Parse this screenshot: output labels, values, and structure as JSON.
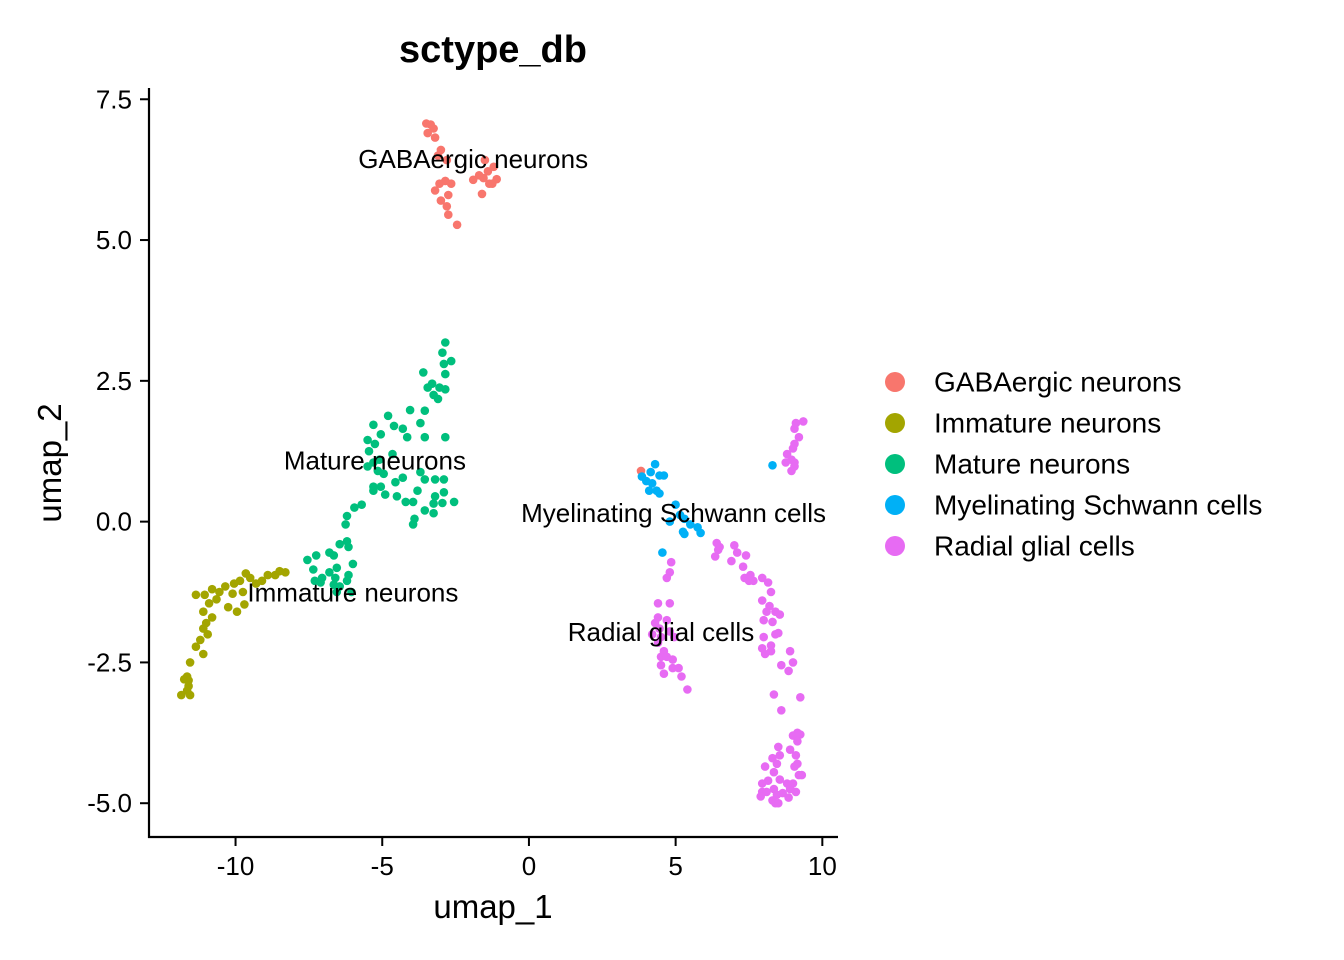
{
  "chart_data": {
    "type": "scatter",
    "title": "sctype_db",
    "xlabel": "umap_1",
    "ylabel": "umap_2",
    "xlim": [
      -12.95,
      10.5
    ],
    "ylim": [
      -5.6,
      7.7
    ],
    "xticks": [
      -10,
      -5,
      0,
      5,
      10
    ],
    "xtick_labels": [
      "-10",
      "-5",
      "0",
      "5",
      "10"
    ],
    "yticks": [
      -5.0,
      -2.5,
      0.0,
      2.5,
      5.0,
      7.5
    ],
    "ytick_labels": [
      "-5.0",
      "-2.5",
      "0.0",
      "2.5",
      "5.0",
      "7.5"
    ],
    "grid": false,
    "legend_position": "right",
    "series": [
      {
        "name": "GABAergic neurons",
        "color": "#F8766D",
        "points": [
          [
            -3.5,
            7.07
          ],
          [
            -3.35,
            7.05
          ],
          [
            -3.25,
            6.98
          ],
          [
            -3.45,
            6.9
          ],
          [
            -3.2,
            6.82
          ],
          [
            -3.0,
            6.6
          ],
          [
            -3.1,
            6.5
          ],
          [
            -2.8,
            6.42
          ],
          [
            -1.5,
            6.42
          ],
          [
            -1.2,
            6.3
          ],
          [
            -1.4,
            6.22
          ],
          [
            -1.7,
            6.15
          ],
          [
            -1.55,
            6.1
          ],
          [
            -1.1,
            6.08
          ],
          [
            -1.25,
            6.0
          ],
          [
            -1.35,
            6.0
          ],
          [
            -1.9,
            6.07
          ],
          [
            -2.85,
            6.05
          ],
          [
            -3.05,
            6.0
          ],
          [
            -2.65,
            6.0
          ],
          [
            -3.2,
            5.88
          ],
          [
            -2.75,
            5.8
          ],
          [
            -1.6,
            5.82
          ],
          [
            -3.0,
            5.7
          ],
          [
            -2.8,
            5.6
          ],
          [
            -2.75,
            5.45
          ],
          [
            -2.45,
            5.27
          ],
          [
            3.82,
            0.9
          ]
        ]
      },
      {
        "name": "Immature neurons",
        "color": "#A3A500",
        "points": [
          [
            -8.3,
            -0.9
          ],
          [
            -8.65,
            -0.95
          ],
          [
            -8.5,
            -0.88
          ],
          [
            -8.9,
            -0.95
          ],
          [
            -9.1,
            -1.05
          ],
          [
            -9.3,
            -1.1
          ],
          [
            -9.5,
            -1.0
          ],
          [
            -9.65,
            -0.92
          ],
          [
            -9.85,
            -1.05
          ],
          [
            -10.05,
            -1.1
          ],
          [
            -9.75,
            -1.25
          ],
          [
            -10.1,
            -1.28
          ],
          [
            -10.35,
            -1.15
          ],
          [
            -10.55,
            -1.25
          ],
          [
            -10.8,
            -1.2
          ],
          [
            -11.05,
            -1.3
          ],
          [
            -11.35,
            -1.3
          ],
          [
            -10.65,
            -1.38
          ],
          [
            -10.9,
            -1.45
          ],
          [
            -9.7,
            -1.47
          ],
          [
            -10.25,
            -1.52
          ],
          [
            -9.95,
            -1.6
          ],
          [
            -11.1,
            -1.6
          ],
          [
            -10.8,
            -1.7
          ],
          [
            -11.0,
            -1.8
          ],
          [
            -11.1,
            -1.9
          ],
          [
            -10.95,
            -2.0
          ],
          [
            -11.2,
            -2.1
          ],
          [
            -11.35,
            -2.22
          ],
          [
            -11.1,
            -2.35
          ],
          [
            -11.55,
            -2.5
          ],
          [
            -11.65,
            -2.75
          ],
          [
            -11.6,
            -2.82
          ],
          [
            -11.6,
            -2.92
          ],
          [
            -11.65,
            -3.0
          ],
          [
            -11.85,
            -3.08
          ],
          [
            -11.55,
            -3.08
          ],
          [
            -11.75,
            -2.8
          ]
        ]
      },
      {
        "name": "Mature neurons",
        "color": "#00BF7D",
        "points": [
          [
            -2.85,
            3.18
          ],
          [
            -2.95,
            3.0
          ],
          [
            -2.65,
            2.85
          ],
          [
            -2.9,
            2.8
          ],
          [
            -3.6,
            2.65
          ],
          [
            -2.85,
            2.62
          ],
          [
            -3.3,
            2.45
          ],
          [
            -3.05,
            2.38
          ],
          [
            -3.45,
            2.38
          ],
          [
            -2.85,
            2.35
          ],
          [
            -3.25,
            2.25
          ],
          [
            -3.1,
            2.18
          ],
          [
            -3.55,
            1.97
          ],
          [
            -4.05,
            1.98
          ],
          [
            -4.8,
            1.88
          ],
          [
            -3.7,
            1.75
          ],
          [
            -5.3,
            1.72
          ],
          [
            -4.6,
            1.7
          ],
          [
            -4.3,
            1.65
          ],
          [
            -5.05,
            1.55
          ],
          [
            -4.15,
            1.5
          ],
          [
            -2.85,
            1.5
          ],
          [
            -3.55,
            1.5
          ],
          [
            -5.5,
            1.45
          ],
          [
            -5.25,
            1.38
          ],
          [
            -5.45,
            1.25
          ],
          [
            -4.65,
            1.2
          ],
          [
            -5.1,
            1.1
          ],
          [
            -5.3,
            1.05
          ],
          [
            -5.5,
            0.98
          ],
          [
            -5.15,
            0.9
          ],
          [
            -4.95,
            0.85
          ],
          [
            -3.7,
            0.88
          ],
          [
            -3.55,
            0.75
          ],
          [
            -3.2,
            0.75
          ],
          [
            -2.9,
            0.75
          ],
          [
            -4.3,
            0.78
          ],
          [
            -4.55,
            0.7
          ],
          [
            -5.3,
            0.62
          ],
          [
            -5.05,
            0.62
          ],
          [
            -5.3,
            0.55
          ],
          [
            -3.8,
            0.55
          ],
          [
            -2.9,
            0.52
          ],
          [
            -4.9,
            0.48
          ],
          [
            -4.5,
            0.45
          ],
          [
            -3.2,
            0.45
          ],
          [
            -3.95,
            0.35
          ],
          [
            -4.2,
            0.35
          ],
          [
            -2.55,
            0.35
          ],
          [
            -2.95,
            0.33
          ],
          [
            -3.25,
            0.32
          ],
          [
            -5.7,
            0.3
          ],
          [
            -5.95,
            0.25
          ],
          [
            -3.55,
            0.2
          ],
          [
            -3.25,
            0.15
          ],
          [
            -6.2,
            0.1
          ],
          [
            -6.25,
            -0.05
          ],
          [
            -3.9,
            0.05
          ],
          [
            -3.95,
            -0.05
          ],
          [
            -6.2,
            -0.35
          ],
          [
            -6.45,
            -0.4
          ],
          [
            -6.15,
            -0.45
          ],
          [
            -6.8,
            -0.55
          ],
          [
            -6.65,
            -0.6
          ],
          [
            -7.25,
            -0.6
          ],
          [
            -7.55,
            -0.68
          ],
          [
            -6.0,
            -0.75
          ],
          [
            -6.55,
            -0.82
          ],
          [
            -7.35,
            -0.85
          ],
          [
            -6.8,
            -0.9
          ],
          [
            -6.15,
            -0.95
          ],
          [
            -7.05,
            -1.0
          ],
          [
            -6.6,
            -1.0
          ],
          [
            -6.2,
            -1.05
          ],
          [
            -7.1,
            -1.08
          ],
          [
            -6.45,
            -1.15
          ],
          [
            -7.3,
            -1.05
          ],
          [
            -6.55,
            -1.25
          ],
          [
            -6.05,
            -1.25
          ],
          [
            -6.65,
            -1.12
          ]
        ]
      },
      {
        "name": "Myelinating Schwann cells",
        "color": "#00B0F6",
        "points": [
          [
            4.3,
            1.02
          ],
          [
            4.15,
            0.88
          ],
          [
            4.45,
            0.82
          ],
          [
            4.6,
            0.82
          ],
          [
            3.85,
            0.8
          ],
          [
            4.0,
            0.72
          ],
          [
            4.2,
            0.68
          ],
          [
            4.35,
            0.55
          ],
          [
            4.45,
            0.5
          ],
          [
            4.1,
            0.55
          ],
          [
            5.0,
            0.3
          ],
          [
            5.15,
            0.12
          ],
          [
            4.8,
            0.0
          ],
          [
            5.3,
            0.05
          ],
          [
            5.5,
            -0.05
          ],
          [
            5.75,
            -0.1
          ],
          [
            5.85,
            -0.2
          ],
          [
            5.3,
            -0.22
          ],
          [
            5.25,
            -0.18
          ],
          [
            4.55,
            -0.55
          ],
          [
            8.3,
            1.0
          ]
        ]
      },
      {
        "name": "Radial glial cells",
        "color": "#E76BF3",
        "points": [
          [
            9.35,
            1.78
          ],
          [
            9.1,
            1.75
          ],
          [
            9.05,
            1.65
          ],
          [
            9.2,
            1.5
          ],
          [
            9.05,
            1.38
          ],
          [
            9.0,
            1.3
          ],
          [
            8.8,
            1.2
          ],
          [
            8.95,
            1.1
          ],
          [
            9.05,
            1.05
          ],
          [
            8.75,
            1.05
          ],
          [
            9.05,
            0.98
          ],
          [
            8.95,
            0.9
          ],
          [
            6.4,
            -0.38
          ],
          [
            6.45,
            -0.5
          ],
          [
            6.35,
            -0.62
          ],
          [
            7.0,
            -0.42
          ],
          [
            7.1,
            -0.55
          ],
          [
            7.4,
            -0.6
          ],
          [
            6.9,
            -0.7
          ],
          [
            7.3,
            -0.8
          ],
          [
            7.35,
            -1.0
          ],
          [
            7.5,
            -1.05
          ],
          [
            7.65,
            -1.05
          ],
          [
            7.55,
            -0.95
          ],
          [
            7.95,
            -1.0
          ],
          [
            6.5,
            -0.45
          ],
          [
            4.85,
            -0.72
          ],
          [
            4.8,
            -0.9
          ],
          [
            4.7,
            -1.0
          ],
          [
            8.15,
            -1.08
          ],
          [
            8.25,
            -1.25
          ],
          [
            7.95,
            -1.4
          ],
          [
            8.2,
            -1.5
          ],
          [
            8.4,
            -1.6
          ],
          [
            8.1,
            -1.6
          ],
          [
            8.0,
            -1.75
          ],
          [
            8.3,
            -1.78
          ],
          [
            8.55,
            -1.65
          ],
          [
            8.5,
            -1.98
          ],
          [
            8.0,
            -2.05
          ],
          [
            8.25,
            -2.2
          ],
          [
            8.4,
            -2.0
          ],
          [
            7.95,
            -2.25
          ],
          [
            8.25,
            -2.3
          ],
          [
            8.05,
            -2.35
          ],
          [
            8.9,
            -2.3
          ],
          [
            8.6,
            -2.55
          ],
          [
            9.0,
            -2.5
          ],
          [
            8.85,
            -2.65
          ],
          [
            4.4,
            -1.45
          ],
          [
            4.8,
            -1.45
          ],
          [
            4.4,
            -1.7
          ],
          [
            4.7,
            -1.75
          ],
          [
            4.3,
            -1.8
          ],
          [
            4.45,
            -1.9
          ],
          [
            4.2,
            -2.0
          ],
          [
            4.5,
            -2.05
          ],
          [
            4.8,
            -1.95
          ],
          [
            4.95,
            -2.05
          ],
          [
            4.4,
            -2.15
          ],
          [
            4.6,
            -2.3
          ],
          [
            4.5,
            -2.4
          ],
          [
            4.7,
            -2.4
          ],
          [
            4.9,
            -2.45
          ],
          [
            4.5,
            -2.55
          ],
          [
            4.9,
            -2.6
          ],
          [
            4.6,
            -2.7
          ],
          [
            5.1,
            -2.6
          ],
          [
            5.2,
            -2.75
          ],
          [
            5.4,
            -2.98
          ],
          [
            8.35,
            -3.07
          ],
          [
            9.25,
            -3.12
          ],
          [
            8.6,
            -3.35
          ],
          [
            9.15,
            -3.75
          ],
          [
            9.0,
            -3.8
          ],
          [
            9.25,
            -3.78
          ],
          [
            9.15,
            -3.9
          ],
          [
            8.9,
            -4.05
          ],
          [
            9.1,
            -4.15
          ],
          [
            8.5,
            -4.0
          ],
          [
            8.55,
            -4.15
          ],
          [
            8.3,
            -4.2
          ],
          [
            8.45,
            -4.3
          ],
          [
            9.15,
            -4.3
          ],
          [
            9.05,
            -4.35
          ],
          [
            8.05,
            -4.35
          ],
          [
            8.35,
            -4.45
          ],
          [
            9.2,
            -4.5
          ],
          [
            9.3,
            -4.5
          ],
          [
            8.55,
            -4.58
          ],
          [
            8.15,
            -4.6
          ],
          [
            8.8,
            -4.65
          ],
          [
            9.0,
            -4.65
          ],
          [
            7.95,
            -4.65
          ],
          [
            8.35,
            -4.75
          ],
          [
            8.9,
            -4.75
          ],
          [
            8.65,
            -4.82
          ],
          [
            8.45,
            -4.85
          ],
          [
            9.1,
            -4.8
          ],
          [
            7.95,
            -4.8
          ],
          [
            8.1,
            -4.8
          ],
          [
            8.85,
            -4.9
          ],
          [
            8.3,
            -4.95
          ],
          [
            8.4,
            -5.0
          ],
          [
            8.5,
            -5.0
          ],
          [
            7.9,
            -4.88
          ]
        ]
      }
    ],
    "annotations": [
      {
        "text": "GABAergic neurons",
        "x": -1.9,
        "y": 6.4
      },
      {
        "text": "Mature neurons",
        "x": -5.25,
        "y": 1.05
      },
      {
        "text": "Myelinating Schwann cells",
        "x": 4.93,
        "y": 0.12
      },
      {
        "text": "Immature neurons",
        "x": -6.0,
        "y": -1.3
      },
      {
        "text": "Radial glial cells",
        "x": 4.5,
        "y": -2.0
      }
    ]
  }
}
